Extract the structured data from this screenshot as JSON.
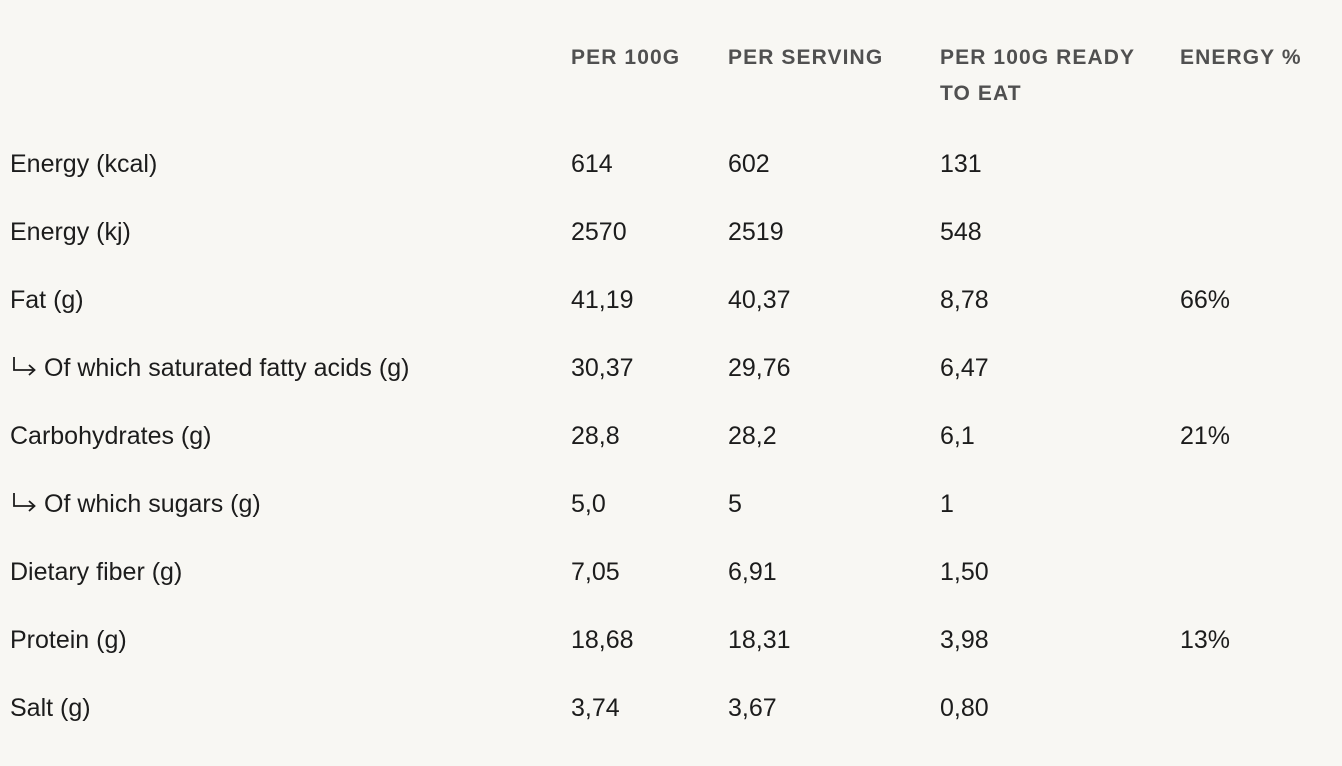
{
  "table": {
    "headers": {
      "label": "",
      "per_100g": "PER 100G",
      "per_serving": "PER SERVING",
      "per_100g_ready": "PER 100G READY TO EAT",
      "energy_pct": "ENERGY %"
    },
    "rows": [
      {
        "label": "Energy (kcal)",
        "sub": false,
        "per_100g": "614",
        "per_serving": "602",
        "per_100g_ready": "131",
        "energy_pct": ""
      },
      {
        "label": "Energy (kj)",
        "sub": false,
        "per_100g": "2570",
        "per_serving": "2519",
        "per_100g_ready": "548",
        "energy_pct": ""
      },
      {
        "label": "Fat (g)",
        "sub": false,
        "per_100g": "41,19",
        "per_serving": "40,37",
        "per_100g_ready": "8,78",
        "energy_pct": "66%"
      },
      {
        "label": "Of which saturated fatty acids (g)",
        "sub": true,
        "per_100g": "30,37",
        "per_serving": "29,76",
        "per_100g_ready": "6,47",
        "energy_pct": ""
      },
      {
        "label": "Carbohydrates (g)",
        "sub": false,
        "per_100g": "28,8",
        "per_serving": "28,2",
        "per_100g_ready": "6,1",
        "energy_pct": "21%"
      },
      {
        "label": "Of which sugars (g)",
        "sub": true,
        "per_100g": "5,0",
        "per_serving": "5",
        "per_100g_ready": "1",
        "energy_pct": ""
      },
      {
        "label": "Dietary fiber (g)",
        "sub": false,
        "per_100g": "7,05",
        "per_serving": "6,91",
        "per_100g_ready": "1,50",
        "energy_pct": ""
      },
      {
        "label": "Protein (g)",
        "sub": false,
        "per_100g": "18,68",
        "per_serving": "18,31",
        "per_100g_ready": "3,98",
        "energy_pct": "13%"
      },
      {
        "label": "Salt (g)",
        "sub": false,
        "per_100g": "3,74",
        "per_serving": "3,67",
        "per_100g_ready": "0,80",
        "energy_pct": ""
      }
    ]
  },
  "icons": {
    "sub_item_marker": "subdirectory-arrow-icon"
  },
  "colors": {
    "background": "#f8f7f3",
    "text": "#1c1c1c",
    "header_text": "#505050"
  }
}
